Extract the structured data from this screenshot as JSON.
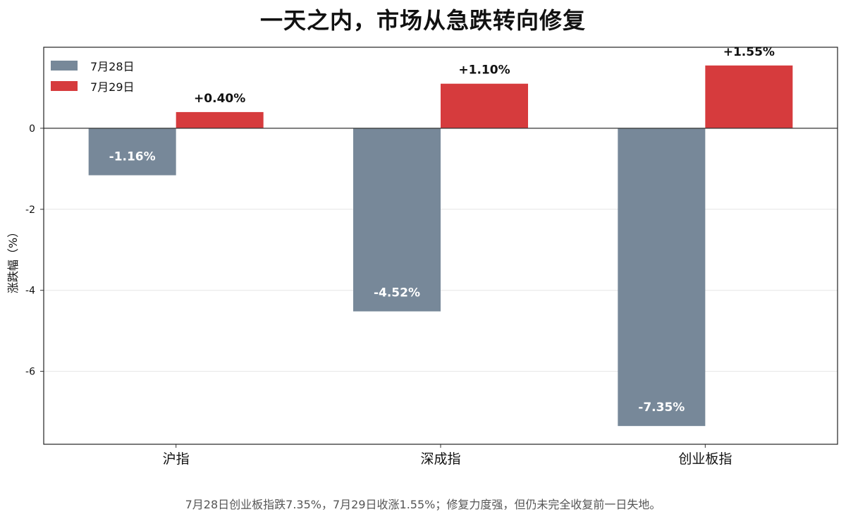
{
  "chart_data": {
    "type": "bar",
    "title": "一天之内，市场从急跌转向修复",
    "ylabel": "涨跌幅（%）",
    "xlabel": "",
    "categories": [
      "沪指",
      "深成指",
      "创业板指"
    ],
    "series": [
      {
        "name": "7月28日",
        "color": "#778899",
        "values": [
          -1.16,
          -4.52,
          -7.35
        ],
        "labels": [
          "-1.16%",
          "-4.52%",
          "-7.35%"
        ]
      },
      {
        "name": "7月29日",
        "color": "#d63b3d",
        "values": [
          0.4,
          1.1,
          1.55
        ],
        "labels": [
          "+0.40%",
          "+1.10%",
          "+1.55%"
        ]
      }
    ],
    "ylim": [
      -7.8,
      2.0
    ],
    "yticks": [
      0,
      -2,
      -4,
      -6
    ],
    "ytick_labels": [
      "0",
      "-2",
      "-4",
      "-6"
    ],
    "grid": true,
    "legend_position": "top-left",
    "footnote": "7月28日创业板指跌7.35%，7月29日收涨1.55%；修复力度强，但仍未完全收复前一日失地。"
  }
}
